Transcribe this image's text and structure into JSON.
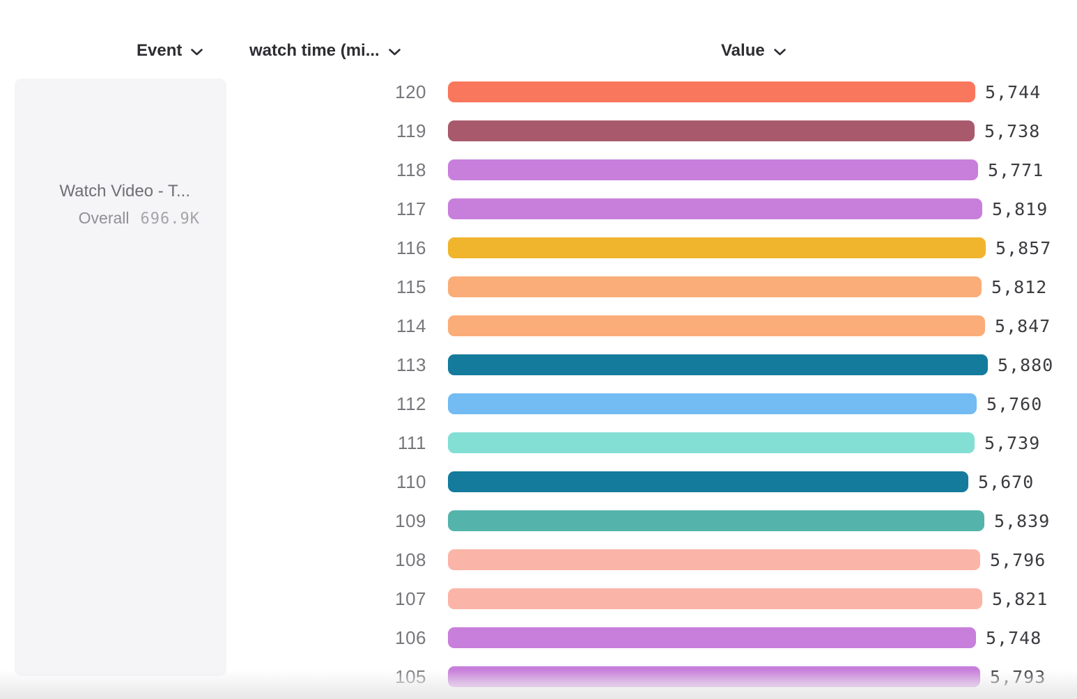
{
  "header": {
    "columns": [
      {
        "id": "event",
        "label": "Event",
        "icon": "chevron-down-icon"
      },
      {
        "id": "watch_time",
        "label": "watch time (mi...",
        "icon": "chevron-down-icon"
      },
      {
        "id": "value",
        "label": "Value",
        "icon": "chevron-down-icon"
      }
    ]
  },
  "event_panel": {
    "title": "Watch Video - T...",
    "overall_label": "Overall",
    "overall_value": "696.9K"
  },
  "chart_data": {
    "type": "bar",
    "orientation": "horizontal",
    "title": "",
    "xlabel": "Value",
    "ylabel": "watch time (mi...",
    "xlim": [
      0,
      5880
    ],
    "grid": false,
    "legend": "none",
    "categories": [
      "120",
      "119",
      "118",
      "117",
      "116",
      "115",
      "114",
      "113",
      "112",
      "111",
      "110",
      "109",
      "108",
      "107",
      "106",
      "105"
    ],
    "values": [
      5744,
      5738,
      5771,
      5819,
      5857,
      5812,
      5847,
      5880,
      5760,
      5739,
      5670,
      5839,
      5796,
      5821,
      5748,
      5793
    ],
    "value_labels": [
      "5,744",
      "5,738",
      "5,771",
      "5,819",
      "5,857",
      "5,812",
      "5,847",
      "5,880",
      "5,760",
      "5,739",
      "5,670",
      "5,839",
      "5,796",
      "5,821",
      "5,748",
      "5,793"
    ],
    "colors": [
      "#F9775C",
      "#A85A6C",
      "#C87FDB",
      "#C87FDB",
      "#F0B52D",
      "#FAAD79",
      "#FAAD79",
      "#147B9D",
      "#73BBF3",
      "#83DFD4",
      "#147B9D",
      "#54B4AB",
      "#FBB5A8",
      "#FBB5A8",
      "#C87FDB",
      "#C87FDB"
    ]
  }
}
